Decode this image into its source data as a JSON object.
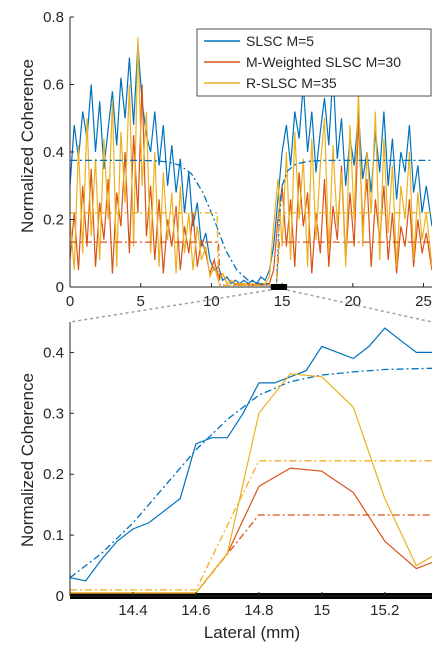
{
  "colors": {
    "slsc": "#0072BD",
    "mweighted": "#D95319",
    "rslsc": "#EDB120",
    "axis": "#262626",
    "zoom_connector": "#a0a0a0",
    "zoom_bar": "#000000"
  },
  "chart_data": [
    {
      "id": "top",
      "type": "line",
      "xlabel": "",
      "ylabel": "Normalized Coherence",
      "xlim": [
        0,
        25.6
      ],
      "ylim": [
        0,
        0.8
      ],
      "xticks": [
        0,
        5,
        10,
        15,
        20,
        25
      ],
      "yticks": [
        0,
        0.2,
        0.4,
        0.6,
        0.8
      ],
      "xtick_labels": [
        "0",
        "5",
        "10",
        "15",
        "20",
        "25"
      ],
      "ytick_labels": [
        "0",
        "0.2",
        "0.4",
        "0.6",
        "0.8"
      ],
      "legend_position": "top-right",
      "legend": [
        "SLSC M=5",
        "M-Weighted SLSC M=30",
        "R-SLSC M=35"
      ],
      "zoom_range": [
        14.2,
        15.35
      ],
      "series": [
        {
          "name": "SLSC M=5",
          "color_key": "slsc",
          "style": "solid",
          "x": [
            0,
            0.3,
            0.6,
            0.9,
            1.2,
            1.5,
            1.8,
            2.1,
            2.4,
            2.7,
            3.0,
            3.3,
            3.6,
            3.9,
            4.2,
            4.5,
            4.8,
            5.1,
            5.4,
            5.7,
            6.0,
            6.3,
            6.6,
            6.9,
            7.2,
            7.5,
            7.8,
            8.1,
            8.4,
            8.7,
            9.0,
            9.3,
            9.6,
            9.9,
            10.2,
            10.5,
            10.8,
            11.1,
            11.4,
            11.7,
            12.0,
            12.3,
            12.6,
            12.9,
            13.2,
            13.5,
            13.8,
            14.1,
            14.4,
            14.7,
            15.0,
            15.3,
            15.6,
            15.9,
            16.2,
            16.5,
            16.8,
            17.1,
            17.4,
            17.7,
            18.0,
            18.3,
            18.6,
            18.9,
            19.2,
            19.5,
            19.8,
            20.1,
            20.4,
            20.7,
            21.0,
            21.3,
            21.6,
            21.9,
            22.2,
            22.5,
            22.8,
            23.1,
            23.4,
            23.7,
            24.0,
            24.3,
            24.6,
            24.9,
            25.2,
            25.6
          ],
          "y": [
            0.3,
            0.48,
            0.38,
            0.52,
            0.44,
            0.6,
            0.4,
            0.55,
            0.35,
            0.47,
            0.58,
            0.42,
            0.62,
            0.5,
            0.68,
            0.48,
            0.72,
            0.55,
            0.45,
            0.4,
            0.52,
            0.36,
            0.48,
            0.3,
            0.42,
            0.28,
            0.38,
            0.22,
            0.34,
            0.18,
            0.25,
            0.12,
            0.16,
            0.08,
            0.05,
            0.06,
            0.02,
            0.03,
            0.01,
            0.02,
            0.01,
            0.02,
            0.01,
            0.02,
            0.01,
            0.03,
            0.02,
            0.05,
            0.12,
            0.26,
            0.4,
            0.48,
            0.36,
            0.52,
            0.44,
            0.6,
            0.4,
            0.52,
            0.34,
            0.46,
            0.56,
            0.42,
            0.64,
            0.38,
            0.5,
            0.3,
            0.44,
            0.36,
            0.52,
            0.32,
            0.4,
            0.28,
            0.46,
            0.34,
            0.52,
            0.3,
            0.44,
            0.26,
            0.4,
            0.34,
            0.48,
            0.28,
            0.36,
            0.22,
            0.3,
            0.18
          ]
        },
        {
          "name": "M-Weighted SLSC M=30",
          "color_key": "mweighted",
          "style": "solid",
          "x": [
            0,
            0.3,
            0.6,
            0.9,
            1.2,
            1.5,
            1.8,
            2.1,
            2.4,
            2.7,
            3.0,
            3.3,
            3.6,
            3.9,
            4.2,
            4.5,
            4.8,
            5.1,
            5.4,
            5.7,
            6.0,
            6.3,
            6.6,
            6.9,
            7.2,
            7.5,
            7.8,
            8.1,
            8.4,
            8.7,
            9.0,
            9.3,
            9.6,
            9.9,
            10.2,
            10.5,
            10.8,
            11.1,
            11.4,
            11.7,
            12.0,
            12.3,
            12.6,
            12.9,
            13.2,
            13.5,
            13.8,
            14.1,
            14.4,
            14.7,
            15.0,
            15.3,
            15.6,
            15.9,
            16.2,
            16.5,
            16.8,
            17.1,
            17.4,
            17.7,
            18.0,
            18.3,
            18.6,
            18.9,
            19.2,
            19.5,
            19.8,
            20.1,
            20.4,
            20.7,
            21.0,
            21.3,
            21.6,
            21.9,
            22.2,
            22.5,
            22.8,
            23.1,
            23.4,
            23.7,
            24.0,
            24.3,
            24.6,
            24.9,
            25.2,
            25.6
          ],
          "y": [
            0.08,
            0.22,
            0.05,
            0.3,
            0.12,
            0.35,
            0.06,
            0.25,
            0.14,
            0.32,
            0.04,
            0.28,
            0.18,
            0.4,
            0.1,
            0.45,
            0.22,
            0.6,
            0.15,
            0.3,
            0.08,
            0.26,
            0.04,
            0.2,
            0.12,
            0.24,
            0.05,
            0.18,
            0.1,
            0.22,
            0.06,
            0.14,
            0.1,
            0.04,
            0.08,
            0.03,
            0.04,
            0.01,
            0.02,
            0.005,
            0.01,
            0.005,
            0.01,
            0.005,
            0.01,
            0.005,
            0.01,
            0.01,
            0.05,
            0.2,
            0.3,
            0.12,
            0.26,
            0.06,
            0.34,
            0.18,
            0.28,
            0.04,
            0.22,
            0.1,
            0.32,
            0.06,
            0.24,
            0.14,
            0.36,
            0.08,
            0.28,
            0.12,
            0.5,
            0.18,
            0.32,
            0.06,
            0.26,
            0.14,
            0.3,
            0.08,
            0.22,
            0.04,
            0.18,
            0.12,
            0.26,
            0.06,
            0.2,
            0.1,
            0.16,
            0.05
          ]
        },
        {
          "name": "R-SLSC M=35",
          "color_key": "rslsc",
          "style": "solid",
          "x": [
            0,
            0.3,
            0.6,
            0.9,
            1.2,
            1.5,
            1.8,
            2.1,
            2.4,
            2.7,
            3.0,
            3.3,
            3.6,
            3.9,
            4.2,
            4.5,
            4.8,
            5.1,
            5.4,
            5.7,
            6.0,
            6.3,
            6.6,
            6.9,
            7.2,
            7.5,
            7.8,
            8.1,
            8.4,
            8.7,
            9.0,
            9.3,
            9.6,
            9.9,
            10.2,
            10.5,
            10.8,
            11.1,
            11.4,
            11.7,
            12.0,
            12.3,
            12.6,
            12.9,
            13.2,
            13.5,
            13.8,
            14.1,
            14.4,
            14.7,
            15.0,
            15.3,
            15.6,
            15.9,
            16.2,
            16.5,
            16.8,
            17.1,
            17.4,
            17.7,
            18.0,
            18.3,
            18.6,
            18.9,
            19.2,
            19.5,
            19.8,
            20.1,
            20.4,
            20.7,
            21.0,
            21.3,
            21.6,
            21.9,
            22.2,
            22.5,
            22.8,
            23.1,
            23.4,
            23.7,
            24.0,
            24.3,
            24.6,
            24.9,
            25.2,
            25.6
          ],
          "y": [
            0.2,
            0.05,
            0.42,
            0.1,
            0.5,
            0.15,
            0.38,
            0.08,
            0.44,
            0.2,
            0.55,
            0.06,
            0.46,
            0.25,
            0.6,
            0.12,
            0.74,
            0.3,
            0.52,
            0.1,
            0.4,
            0.06,
            0.34,
            0.14,
            0.28,
            0.04,
            0.3,
            0.1,
            0.22,
            0.05,
            0.18,
            0.08,
            0.12,
            0.03,
            0.06,
            0.02,
            0.04,
            0.01,
            0.02,
            0.01,
            0.01,
            0.01,
            0.005,
            0.01,
            0.005,
            0.01,
            0.01,
            0.03,
            0.18,
            0.32,
            0.12,
            0.4,
            0.08,
            0.46,
            0.2,
            0.38,
            0.06,
            0.44,
            0.14,
            0.36,
            0.5,
            0.1,
            0.42,
            0.18,
            0.34,
            0.06,
            0.48,
            0.2,
            0.58,
            0.12,
            0.4,
            0.22,
            0.52,
            0.08,
            0.44,
            0.16,
            0.36,
            0.06,
            0.3,
            0.2,
            0.4,
            0.08,
            0.28,
            0.14,
            0.22,
            0.06
          ]
        },
        {
          "name": "",
          "color_key": "slsc",
          "style": "dashdot",
          "x": [
            0,
            5.0,
            6.0,
            7.0,
            7.8,
            8.6,
            9.4,
            10.2,
            11.0,
            11.8,
            12.6,
            13.4,
            14.2,
            14.6,
            14.8,
            15.0,
            15.4,
            16.0,
            17.0,
            18.0,
            20.0,
            25.6
          ],
          "y": [
            0.375,
            0.375,
            0.374,
            0.37,
            0.36,
            0.335,
            0.28,
            0.2,
            0.11,
            0.05,
            0.02,
            0.01,
            0.005,
            0.005,
            0.2,
            0.3,
            0.345,
            0.365,
            0.373,
            0.375,
            0.375,
            0.375
          ]
        },
        {
          "name": "",
          "color_key": "mweighted",
          "style": "dashdot",
          "x": [
            0,
            10.0,
            10.5,
            10.6,
            14.6,
            14.8,
            25.6
          ],
          "y": [
            0.133,
            0.133,
            0.133,
            0.005,
            0.005,
            0.133,
            0.133
          ]
        },
        {
          "name": "",
          "color_key": "rslsc",
          "style": "dashdot",
          "x": [
            0,
            10.4,
            10.5,
            14.6,
            14.8,
            25.6
          ],
          "y": [
            0.22,
            0.22,
            0.005,
            0.005,
            0.22,
            0.22
          ]
        }
      ]
    },
    {
      "id": "bottom",
      "type": "line",
      "xlabel": "Lateral (mm)",
      "ylabel": "Normalized Coherence",
      "xlim": [
        14.2,
        15.35
      ],
      "ylim": [
        0,
        0.45
      ],
      "xticks": [
        14.4,
        14.6,
        14.8,
        15.0,
        15.2
      ],
      "yticks": [
        0,
        0.1,
        0.2,
        0.3,
        0.4
      ],
      "xtick_labels": [
        "14.4",
        "14.6",
        "14.8",
        "15",
        "15.2"
      ],
      "ytick_labels": [
        "0",
        "0.1",
        "0.2",
        "0.3",
        "0.4"
      ],
      "series": [
        {
          "name": "SLSC M=5",
          "color_key": "slsc",
          "style": "solid",
          "x": [
            14.2,
            14.25,
            14.3,
            14.35,
            14.4,
            14.45,
            14.5,
            14.55,
            14.6,
            14.65,
            14.7,
            14.75,
            14.8,
            14.85,
            14.9,
            14.95,
            15.0,
            15.05,
            15.1,
            15.15,
            15.2,
            15.25,
            15.3,
            15.35
          ],
          "y": [
            0.03,
            0.025,
            0.06,
            0.09,
            0.11,
            0.12,
            0.14,
            0.16,
            0.25,
            0.26,
            0.26,
            0.3,
            0.35,
            0.35,
            0.36,
            0.37,
            0.41,
            0.4,
            0.39,
            0.41,
            0.44,
            0.42,
            0.4,
            0.4
          ]
        },
        {
          "name": "",
          "color_key": "slsc",
          "style": "dashdot",
          "x": [
            14.2,
            14.3,
            14.4,
            14.5,
            14.6,
            14.7,
            14.8,
            14.9,
            15.0,
            15.1,
            15.2,
            15.35
          ],
          "y": [
            0.03,
            0.07,
            0.12,
            0.18,
            0.24,
            0.29,
            0.33,
            0.352,
            0.363,
            0.368,
            0.372,
            0.374
          ]
        },
        {
          "name": "M-Weighted SLSC M=30",
          "color_key": "mweighted",
          "style": "solid",
          "x": [
            14.2,
            14.6,
            14.7,
            14.8,
            14.9,
            15.0,
            15.1,
            15.2,
            15.3,
            15.35
          ],
          "y": [
            0.005,
            0.005,
            0.07,
            0.18,
            0.21,
            0.205,
            0.17,
            0.09,
            0.045,
            0.055
          ]
        },
        {
          "name": "",
          "color_key": "mweighted",
          "style": "dashdot",
          "x": [
            14.2,
            14.6,
            14.8,
            15.35
          ],
          "y": [
            0.005,
            0.005,
            0.133,
            0.133
          ]
        },
        {
          "name": "R-SLSC M=35",
          "color_key": "rslsc",
          "style": "solid",
          "x": [
            14.2,
            14.6,
            14.7,
            14.8,
            14.9,
            15.0,
            15.1,
            15.2,
            15.3,
            15.35
          ],
          "y": [
            0.005,
            0.005,
            0.07,
            0.3,
            0.365,
            0.36,
            0.31,
            0.16,
            0.05,
            0.065
          ]
        },
        {
          "name": "",
          "color_key": "rslsc",
          "style": "dashdot",
          "x": [
            14.2,
            14.6,
            14.8,
            15.35
          ],
          "y": [
            0.01,
            0.01,
            0.222,
            0.222
          ]
        }
      ]
    }
  ]
}
